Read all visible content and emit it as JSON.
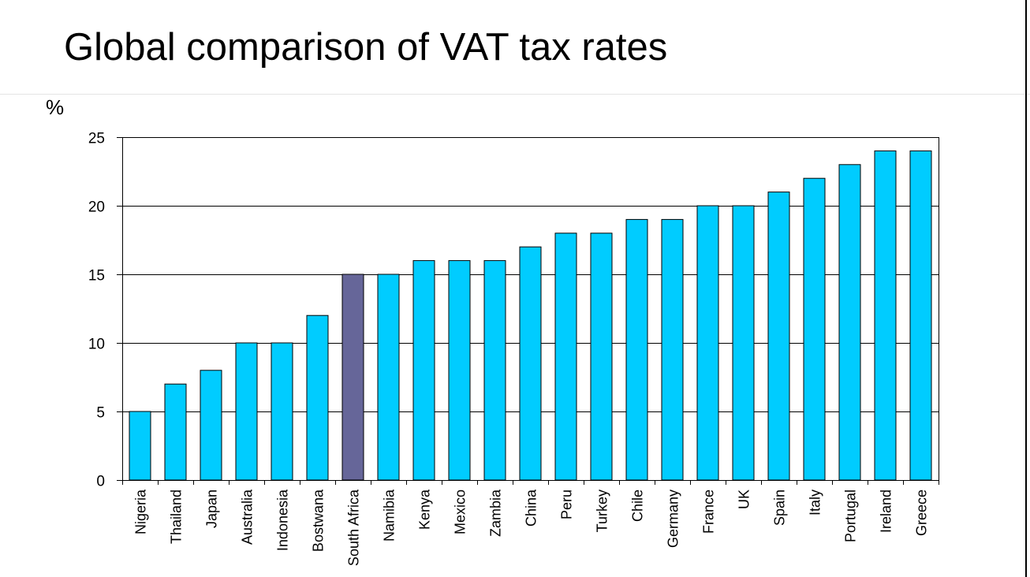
{
  "slide": {
    "title": "Global comparison of VAT tax rates",
    "unit_label": "%"
  },
  "colors": {
    "bar": "#00ccff",
    "highlight_bar": "#666699",
    "gridline": "#000000",
    "bar_outline": "#000000"
  },
  "chart_data": {
    "type": "bar",
    "title": "Global comparison of VAT tax rates",
    "ylabel": "%",
    "xlabel": "",
    "ylim": [
      0,
      25
    ],
    "yticks": [
      0,
      5,
      10,
      15,
      20,
      25
    ],
    "grid": true,
    "legend": "none",
    "x_label_orientation": "vertical",
    "highlight_category": "South Africa",
    "categories": [
      "Nigeria",
      "Thailand",
      "Japan",
      "Australia",
      "Indonesia",
      "Bostwana",
      "South Africa",
      "Namibia",
      "Kenya",
      "Mexico",
      "Zambia",
      "China",
      "Peru",
      "Turkey",
      "Chile",
      "Germany",
      "France",
      "UK",
      "Spain",
      "Italy",
      "Portugal",
      "Ireland",
      "Greece"
    ],
    "values": [
      5,
      7,
      8,
      10,
      10,
      12,
      15,
      15,
      16,
      16,
      16,
      17,
      18,
      18,
      19,
      19,
      20,
      20,
      21,
      22,
      23,
      24,
      24
    ]
  }
}
